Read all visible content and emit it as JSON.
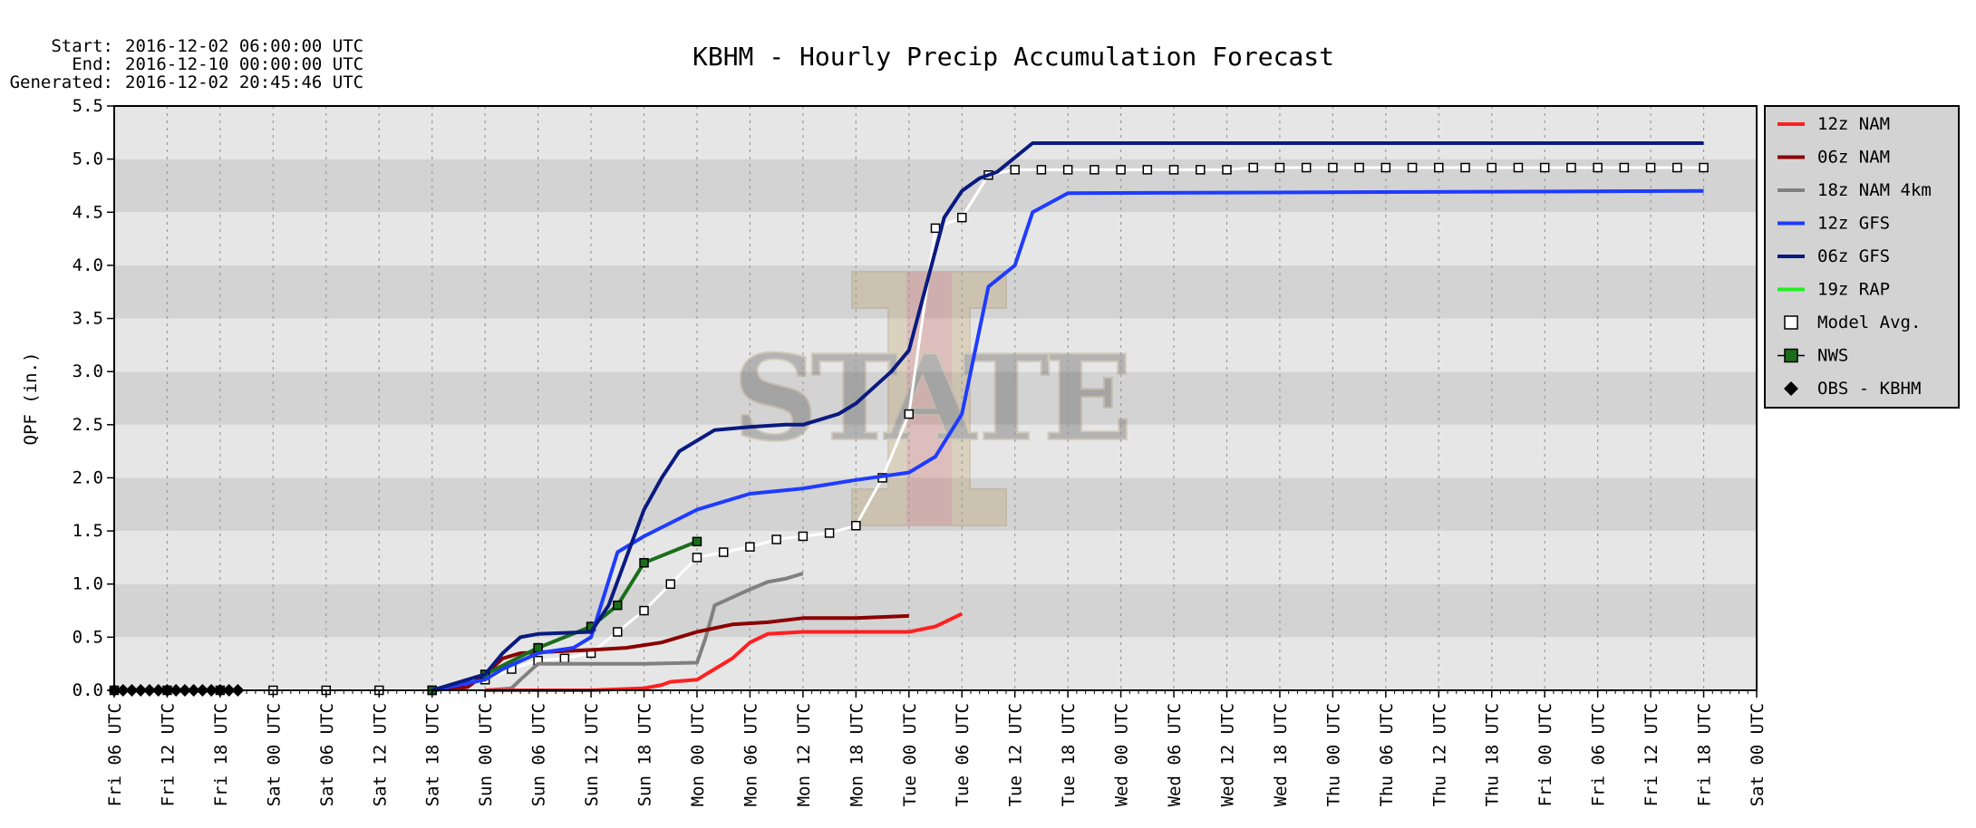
{
  "header": {
    "start_label": "Start:",
    "start_value": "2016-12-02 06:00:00 UTC",
    "end_label": "End:",
    "end_value": "2016-12-10 00:00:00 UTC",
    "generated_label": "Generated:",
    "generated_value": "2016-12-02 20:45:46 UTC"
  },
  "chart_data": {
    "type": "line",
    "title": "KBHM - Hourly Precip Accumulation Forecast",
    "ylabel": "QPF (in.)",
    "xlabel": "",
    "x_unit": "hours since Fri 06 UTC",
    "xlim": [
      0,
      186
    ],
    "ylim": [
      0,
      5.5
    ],
    "yticks": [
      "0.0",
      "0.5",
      "1.0",
      "1.5",
      "2.0",
      "2.5",
      "3.0",
      "3.5",
      "4.0",
      "4.5",
      "5.0",
      "5.5"
    ],
    "xticks": [
      "Fri 06 UTC",
      "Fri 12 UTC",
      "Fri 18 UTC",
      "Sat 00 UTC",
      "Sat 06 UTC",
      "Sat 12 UTC",
      "Sat 18 UTC",
      "Sun 00 UTC",
      "Sun 06 UTC",
      "Sun 12 UTC",
      "Sun 18 UTC",
      "Mon 00 UTC",
      "Mon 06 UTC",
      "Mon 12 UTC",
      "Mon 18 UTC",
      "Tue 00 UTC",
      "Tue 06 UTC",
      "Tue 12 UTC",
      "Tue 18 UTC",
      "Wed 00 UTC",
      "Wed 06 UTC",
      "Wed 12 UTC",
      "Wed 18 UTC",
      "Thu 00 UTC",
      "Thu 06 UTC",
      "Thu 12 UTC",
      "Thu 18 UTC",
      "Fri 00 UTC",
      "Fri 06 UTC",
      "Fri 12 UTC",
      "Fri 18 UTC",
      "Sat 00 UTC"
    ],
    "grid": true,
    "legend_position": "right",
    "watermark": "Iowa State \"I STATE\" logo",
    "series": [
      {
        "name": "12z NAM",
        "color": "#ff2020",
        "marker": "none",
        "points": [
          [
            42,
            0
          ],
          [
            54,
            0
          ],
          [
            60,
            0.02
          ],
          [
            62,
            0.05
          ],
          [
            63,
            0.08
          ],
          [
            66,
            0.1
          ],
          [
            68,
            0.2
          ],
          [
            70,
            0.3
          ],
          [
            72,
            0.45
          ],
          [
            74,
            0.53
          ],
          [
            78,
            0.55
          ],
          [
            86,
            0.55
          ],
          [
            90,
            0.55
          ],
          [
            93,
            0.6
          ],
          [
            96,
            0.72
          ]
        ]
      },
      {
        "name": "06z NAM",
        "color": "#8b0000",
        "marker": "none",
        "points": [
          [
            36,
            0
          ],
          [
            40,
            0.03
          ],
          [
            42,
            0.15
          ],
          [
            44,
            0.3
          ],
          [
            46,
            0.35
          ],
          [
            54,
            0.38
          ],
          [
            58,
            0.4
          ],
          [
            62,
            0.45
          ],
          [
            66,
            0.55
          ],
          [
            70,
            0.62
          ],
          [
            74,
            0.64
          ],
          [
            78,
            0.68
          ],
          [
            84,
            0.68
          ],
          [
            90,
            0.7
          ]
        ]
      },
      {
        "name": "18z NAM 4km",
        "color": "#808080",
        "marker": "none",
        "points": [
          [
            42,
            0
          ],
          [
            45,
            0.02
          ],
          [
            46,
            0.1
          ],
          [
            48,
            0.25
          ],
          [
            54,
            0.25
          ],
          [
            60,
            0.25
          ],
          [
            66,
            0.26
          ],
          [
            67,
            0.5
          ],
          [
            68,
            0.8
          ],
          [
            72,
            0.95
          ],
          [
            74,
            1.02
          ],
          [
            76,
            1.05
          ],
          [
            78,
            1.1
          ]
        ]
      },
      {
        "name": "12z GFS",
        "color": "#1e3cff",
        "marker": "none",
        "points": [
          [
            36,
            0
          ],
          [
            42,
            0.1
          ],
          [
            44,
            0.2
          ],
          [
            48,
            0.35
          ],
          [
            52,
            0.4
          ],
          [
            54,
            0.5
          ],
          [
            57,
            1.3
          ],
          [
            60,
            1.45
          ],
          [
            66,
            1.7
          ],
          [
            72,
            1.85
          ],
          [
            78,
            1.9
          ],
          [
            84,
            1.98
          ],
          [
            90,
            2.05
          ],
          [
            93,
            2.2
          ],
          [
            96,
            2.6
          ],
          [
            99,
            3.8
          ],
          [
            102,
            4.0
          ],
          [
            104,
            4.5
          ],
          [
            108,
            4.68
          ],
          [
            180,
            4.7
          ]
        ]
      },
      {
        "name": "06z GFS",
        "color": "#0a1a80",
        "marker": "none",
        "points": [
          [
            36,
            0
          ],
          [
            42,
            0.15
          ],
          [
            44,
            0.35
          ],
          [
            46,
            0.5
          ],
          [
            48,
            0.53
          ],
          [
            54,
            0.55
          ],
          [
            56,
            0.8
          ],
          [
            60,
            1.7
          ],
          [
            62,
            2.0
          ],
          [
            64,
            2.25
          ],
          [
            66,
            2.35
          ],
          [
            68,
            2.45
          ],
          [
            72,
            2.48
          ],
          [
            76,
            2.5
          ],
          [
            78,
            2.5
          ],
          [
            82,
            2.6
          ],
          [
            84,
            2.7
          ],
          [
            88,
            3.0
          ],
          [
            90,
            3.2
          ],
          [
            94,
            4.45
          ],
          [
            96,
            4.7
          ],
          [
            98,
            4.82
          ],
          [
            100,
            4.88
          ],
          [
            104,
            5.15
          ],
          [
            108,
            5.15
          ],
          [
            180,
            5.15
          ]
        ]
      },
      {
        "name": "NWS",
        "color": "#1a6e1a",
        "marker": "square-filled",
        "points": [
          [
            36,
            0
          ],
          [
            42,
            0.15
          ],
          [
            48,
            0.4
          ],
          [
            54,
            0.6
          ],
          [
            57,
            0.8
          ],
          [
            60,
            1.2
          ],
          [
            66,
            1.4
          ]
        ]
      },
      {
        "name": "Model Avg.",
        "color": "#ffffff",
        "marker": "square-open",
        "points": [
          [
            0,
            0
          ],
          [
            6,
            0
          ],
          [
            12,
            0
          ],
          [
            18,
            0
          ],
          [
            24,
            0
          ],
          [
            30,
            0
          ],
          [
            36,
            0
          ],
          [
            42,
            0.1
          ],
          [
            45,
            0.2
          ],
          [
            48,
            0.28
          ],
          [
            51,
            0.3
          ],
          [
            54,
            0.35
          ],
          [
            57,
            0.55
          ],
          [
            60,
            0.75
          ],
          [
            63,
            1.0
          ],
          [
            66,
            1.25
          ],
          [
            69,
            1.3
          ],
          [
            72,
            1.35
          ],
          [
            75,
            1.42
          ],
          [
            78,
            1.45
          ],
          [
            81,
            1.48
          ],
          [
            84,
            1.55
          ],
          [
            87,
            2.0
          ],
          [
            90,
            2.6
          ],
          [
            93,
            4.35
          ],
          [
            96,
            4.45
          ],
          [
            99,
            4.85
          ],
          [
            102,
            4.9
          ],
          [
            105,
            4.9
          ],
          [
            108,
            4.9
          ],
          [
            111,
            4.9
          ],
          [
            114,
            4.9
          ],
          [
            117,
            4.9
          ],
          [
            120,
            4.9
          ],
          [
            123,
            4.9
          ],
          [
            126,
            4.9
          ],
          [
            129,
            4.92
          ],
          [
            132,
            4.92
          ],
          [
            135,
            4.92
          ],
          [
            138,
            4.92
          ],
          [
            141,
            4.92
          ],
          [
            144,
            4.92
          ],
          [
            147,
            4.92
          ],
          [
            150,
            4.92
          ],
          [
            153,
            4.92
          ],
          [
            156,
            4.92
          ],
          [
            159,
            4.92
          ],
          [
            162,
            4.92
          ],
          [
            165,
            4.92
          ],
          [
            168,
            4.92
          ],
          [
            171,
            4.92
          ],
          [
            174,
            4.92
          ],
          [
            177,
            4.92
          ],
          [
            180,
            4.92
          ]
        ]
      },
      {
        "name": "OBS - KBHM",
        "color": "#000000",
        "marker": "diamond",
        "points": [
          [
            0,
            0
          ],
          [
            1,
            0
          ],
          [
            2,
            0
          ],
          [
            3,
            0
          ],
          [
            4,
            0
          ],
          [
            5,
            0
          ],
          [
            6,
            0
          ],
          [
            7,
            0
          ],
          [
            8,
            0
          ],
          [
            9,
            0
          ],
          [
            10,
            0
          ],
          [
            11,
            0
          ],
          [
            12,
            0
          ],
          [
            13,
            0
          ],
          [
            14,
            0
          ]
        ]
      }
    ],
    "legend": [
      {
        "label": "12z NAM",
        "color": "#ff2020",
        "type": "line"
      },
      {
        "label": "06z NAM",
        "color": "#8b0000",
        "type": "line"
      },
      {
        "label": "18z NAM 4km",
        "color": "#808080",
        "type": "line"
      },
      {
        "label": "12z GFS",
        "color": "#1e3cff",
        "type": "line"
      },
      {
        "label": "06z GFS",
        "color": "#0a1a80",
        "type": "line"
      },
      {
        "label": "19z RAP",
        "color": "#22ee22",
        "type": "line"
      },
      {
        "label": "Model Avg.",
        "color": "#ffffff",
        "type": "open-square"
      },
      {
        "label": "NWS",
        "color": "#1a6e1a",
        "type": "filled-square"
      },
      {
        "label": "OBS - KBHM",
        "color": "#000000",
        "type": "diamond"
      }
    ]
  }
}
